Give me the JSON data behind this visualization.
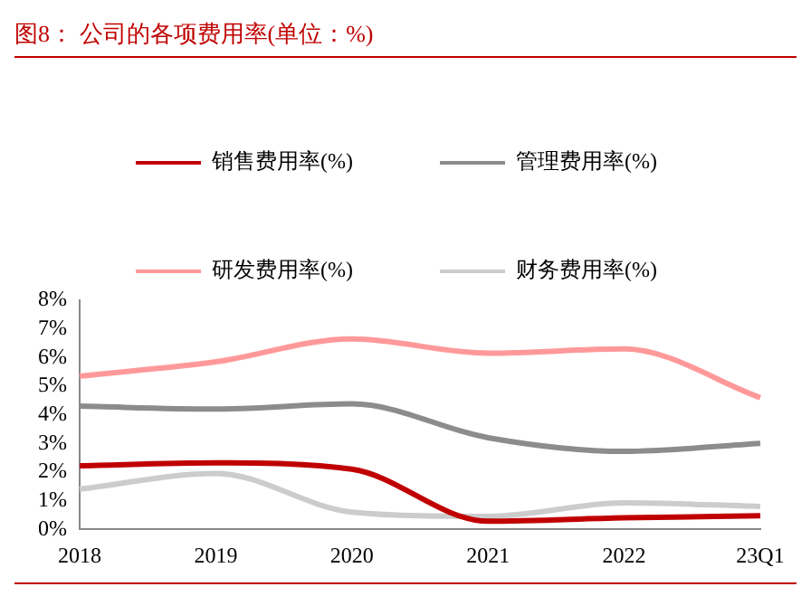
{
  "chart_data": {
    "type": "line",
    "title": "图8： 公司的各项费用率(单位：%)",
    "categories": [
      "2018",
      "2019",
      "2020",
      "2021",
      "2022",
      "23Q1"
    ],
    "series": [
      {
        "name": "销售费用率(%)",
        "color": "#c00000",
        "values": [
          2.22,
          2.32,
          2.1,
          0.28,
          0.4,
          0.47
        ]
      },
      {
        "name": "管理费用率(%)",
        "color": "#8c8c8c",
        "values": [
          4.3,
          4.2,
          4.38,
          3.2,
          2.72,
          3.0
        ]
      },
      {
        "name": "研发费用率(%)",
        "color": "#ff9999",
        "values": [
          5.35,
          5.85,
          6.65,
          6.15,
          6.3,
          4.6
        ]
      },
      {
        "name": "财务费用率(%)",
        "color": "#cccccc",
        "values": [
          1.4,
          1.95,
          0.6,
          0.45,
          0.92,
          0.8
        ]
      }
    ],
    "ylim": [
      0,
      8
    ],
    "yticks": [
      {
        "value": 0,
        "label": "0%"
      },
      {
        "value": 1,
        "label": "1%"
      },
      {
        "value": 2,
        "label": "2%"
      },
      {
        "value": 3,
        "label": "3%"
      },
      {
        "value": 4,
        "label": "4%"
      },
      {
        "value": 5,
        "label": "5%"
      },
      {
        "value": 6,
        "label": "6%"
      },
      {
        "value": 7,
        "label": "7%"
      },
      {
        "value": 8,
        "label": "8%"
      }
    ],
    "grid": false,
    "legend": "top",
    "marker": "none",
    "line_style": "solid"
  }
}
